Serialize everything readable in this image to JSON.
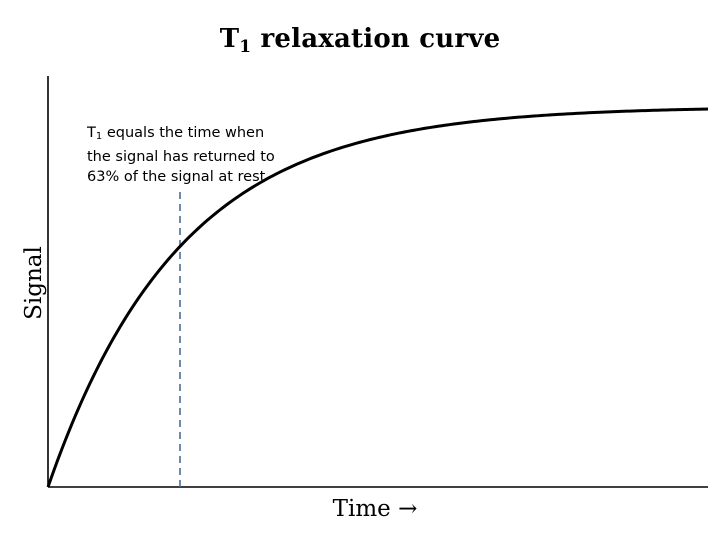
{
  "chart_data": {
    "type": "line",
    "title_main": "T",
    "title_sub": "1",
    "title_rest": " relaxation curve",
    "xlabel": "Time",
    "xlabel_arrow": "→",
    "ylabel": "Signal",
    "x_ticks": [],
    "y_ticks": [],
    "grid": false,
    "curve": {
      "function": "exponential-recovery",
      "t1": 1,
      "asymptote": 1,
      "xlim": [
        0,
        5
      ],
      "ylim": [
        0,
        1.08
      ]
    },
    "marker": {
      "x": 1,
      "style": "dashed",
      "color": "#4a6f95"
    },
    "annotation": {
      "line1_main": "T",
      "line1_sub": "1",
      "line1_rest": " equals the time when",
      "line2": "the signal has returned to",
      "line3": "63% of the signal at rest"
    },
    "colors": {
      "curve": "#000000",
      "axes": "#000000",
      "marker": "#4a6f95"
    }
  }
}
